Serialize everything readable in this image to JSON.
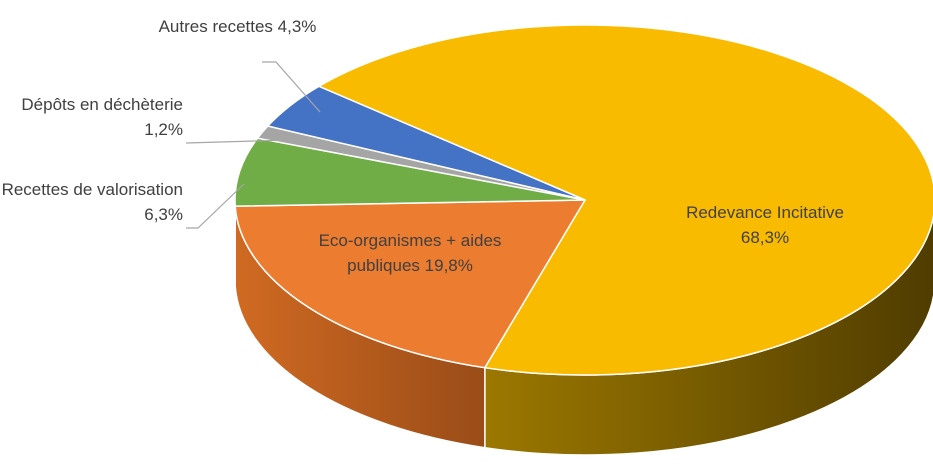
{
  "chart_data": {
    "type": "pie3d",
    "categories": [
      "Redevance Incitative",
      "Eco-organismes + aides publiques",
      "Recettes de valorisation",
      "Dépôts en déchèterie",
      "Autres recettes"
    ],
    "values": [
      68.3,
      19.8,
      6.3,
      1.2,
      4.3
    ],
    "value_labels": [
      "68,3%",
      "19,8%",
      "6,3%",
      "1,2%",
      "4,3%"
    ],
    "colors": [
      "#f9bb00",
      "#ec7c30",
      "#70ad47",
      "#a5a5a5",
      "#4472c4"
    ]
  }
}
